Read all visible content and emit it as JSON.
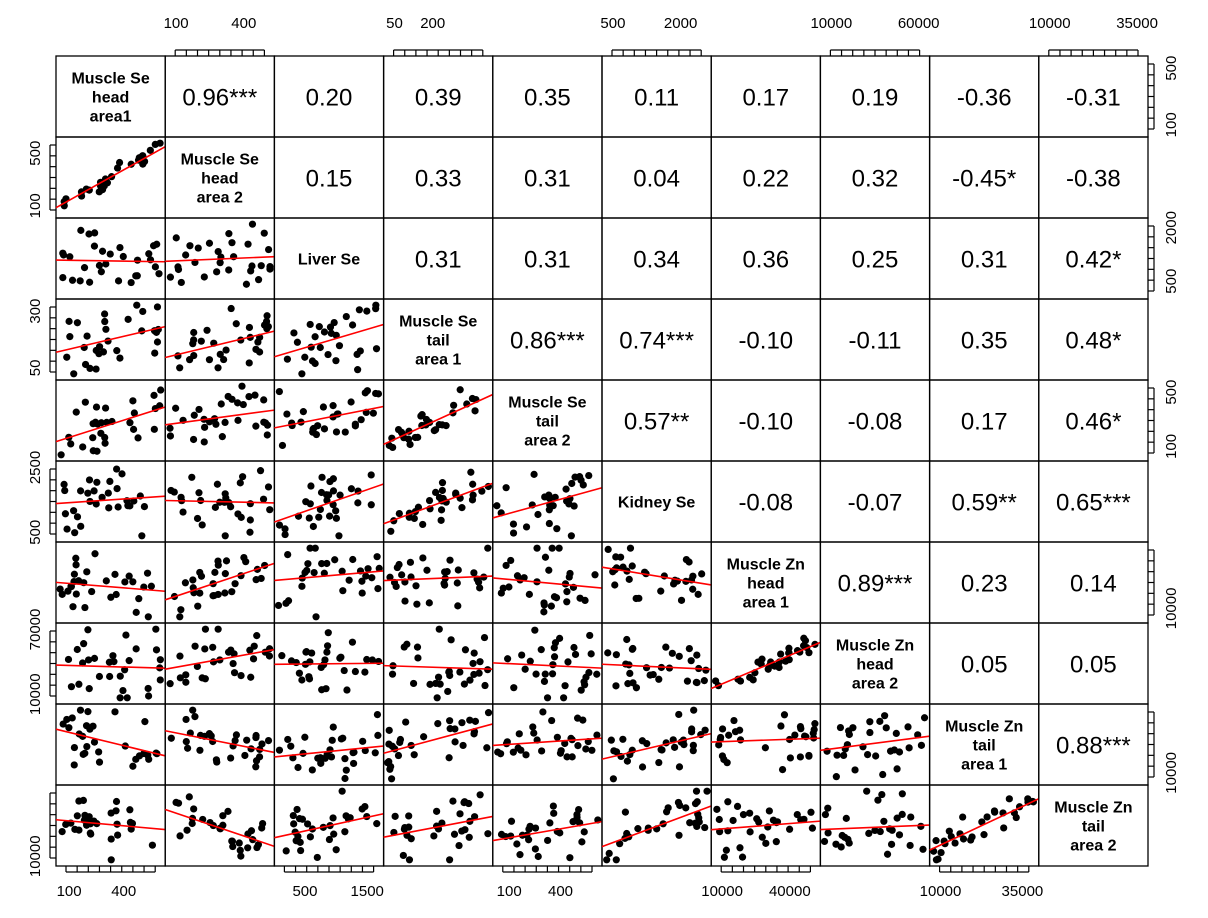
{
  "chart_data": {
    "type": "scatter-matrix",
    "variables": [
      [
        "Muscle Se",
        "head",
        "area1"
      ],
      [
        "Muscle Se",
        "head",
        "area 2"
      ],
      [
        "Liver Se"
      ],
      [
        "Muscle Se",
        "tail",
        "area 1"
      ],
      [
        "Muscle Se",
        "tail",
        "area 2"
      ],
      [
        "Kidney Se"
      ],
      [
        "Muscle Zn",
        "head",
        "area 1"
      ],
      [
        "Muscle Zn",
        "head",
        "area 2"
      ],
      [
        "Muscle Zn",
        "tail",
        "area 1"
      ],
      [
        "Muscle Zn",
        "tail",
        "area 2"
      ]
    ],
    "correlations": [
      [
        "",
        "0.96***",
        "0.20",
        "0.39",
        "0.35",
        "0.11",
        "0.17",
        "0.19",
        "-0.36",
        "-0.31"
      ],
      [
        "",
        "",
        "0.15",
        "0.33",
        "0.31",
        "0.04",
        "0.22",
        "0.32",
        "-0.45*",
        "-0.38"
      ],
      [
        "",
        "",
        "",
        "0.31",
        "0.31",
        "0.34",
        "0.36",
        "0.25",
        "0.31",
        "0.42*"
      ],
      [
        "",
        "",
        "",
        "",
        "0.86***",
        "0.74***",
        "-0.10",
        "-0.11",
        "0.35",
        "0.48*"
      ],
      [
        "",
        "",
        "",
        "",
        "",
        "0.57**",
        "-0.10",
        "-0.08",
        "0.17",
        "0.46*"
      ],
      [
        "",
        "",
        "",
        "",
        "",
        "",
        "-0.08",
        "-0.07",
        "0.59**",
        "0.65***"
      ],
      [
        "",
        "",
        "",
        "",
        "",
        "",
        "",
        "0.89***",
        "0.23",
        "0.14"
      ],
      [
        "",
        "",
        "",
        "",
        "",
        "",
        "",
        "",
        "0.05",
        "0.05"
      ],
      [
        "",
        "",
        "",
        "",
        "",
        "",
        "",
        "",
        "",
        "0.88***"
      ],
      [
        "",
        "",
        "",
        "",
        "",
        "",
        "",
        "",
        "",
        ""
      ]
    ],
    "axes": {
      "top": [
        {
          "col": 1,
          "labels": [
            {
              "text": "100",
              "frac": 0.1
            },
            {
              "text": "400",
              "frac": 0.72
            }
          ]
        },
        {
          "col": 3,
          "labels": [
            {
              "text": "50",
              "frac": 0.1
            },
            {
              "text": "200",
              "frac": 0.45
            }
          ]
        },
        {
          "col": 5,
          "labels": [
            {
              "text": "500",
              "frac": 0.1
            },
            {
              "text": "2000",
              "frac": 0.72
            }
          ]
        },
        {
          "col": 7,
          "labels": [
            {
              "text": "10000",
              "frac": 0.1
            },
            {
              "text": "60000",
              "frac": 0.9
            }
          ]
        },
        {
          "col": 9,
          "labels": [
            {
              "text": "10000",
              "frac": 0.1
            },
            {
              "text": "35000",
              "frac": 0.9
            }
          ]
        }
      ],
      "bottom": [
        {
          "col": 0,
          "labels": [
            {
              "text": "100",
              "frac": 0.12
            },
            {
              "text": "400",
              "frac": 0.62
            }
          ]
        },
        {
          "col": 2,
          "labels": [
            {
              "text": "500",
              "frac": 0.28
            },
            {
              "text": "1500",
              "frac": 0.85
            }
          ]
        },
        {
          "col": 4,
          "labels": [
            {
              "text": "100",
              "frac": 0.15
            },
            {
              "text": "400",
              "frac": 0.62
            }
          ]
        },
        {
          "col": 6,
          "labels": [
            {
              "text": "10000",
              "frac": 0.1
            },
            {
              "text": "40000",
              "frac": 0.72
            }
          ]
        },
        {
          "col": 8,
          "labels": [
            {
              "text": "10000",
              "frac": 0.1
            },
            {
              "text": "35000",
              "frac": 0.85
            }
          ]
        }
      ],
      "left": [
        {
          "row": 1,
          "labels": [
            {
              "text": "100",
              "frac": 0.85
            },
            {
              "text": "500",
              "frac": 0.2
            }
          ]
        },
        {
          "row": 3,
          "labels": [
            {
              "text": "50",
              "frac": 0.85
            },
            {
              "text": "300",
              "frac": 0.15
            }
          ]
        },
        {
          "row": 5,
          "labels": [
            {
              "text": "500",
              "frac": 0.88
            },
            {
              "text": "2500",
              "frac": 0.08
            }
          ]
        },
        {
          "row": 7,
          "labels": [
            {
              "text": "10000",
              "frac": 0.88
            },
            {
              "text": "70000",
              "frac": 0.08
            }
          ]
        },
        {
          "row": 9,
          "labels": [
            {
              "text": "10000",
              "frac": 0.88
            }
          ]
        }
      ],
      "right": [
        {
          "row": 0,
          "labels": [
            {
              "text": "500",
              "frac": 0.15
            },
            {
              "text": "100",
              "frac": 0.85
            }
          ]
        },
        {
          "row": 2,
          "labels": [
            {
              "text": "2000",
              "frac": 0.12
            },
            {
              "text": "500",
              "frac": 0.78
            }
          ]
        },
        {
          "row": 4,
          "labels": [
            {
              "text": "500",
              "frac": 0.15
            },
            {
              "text": "100",
              "frac": 0.82
            }
          ]
        },
        {
          "row": 6,
          "labels": [
            {
              "text": "10000",
              "frac": 0.82
            }
          ]
        },
        {
          "row": 8,
          "labels": [
            {
              "text": "10000",
              "frac": 0.85
            }
          ]
        }
      ]
    },
    "colors": {
      "points": "#000000",
      "fit_line": "#ff0000"
    }
  }
}
